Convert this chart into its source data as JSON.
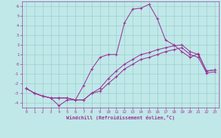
{
  "xlabel": "Windchill (Refroidissement éolien,°C)",
  "xlim": [
    -0.5,
    23.5
  ],
  "ylim": [
    -4.5,
    6.5
  ],
  "yticks": [
    -4,
    -3,
    -2,
    -1,
    0,
    1,
    2,
    3,
    4,
    5,
    6
  ],
  "xticks": [
    0,
    1,
    2,
    3,
    4,
    5,
    6,
    7,
    8,
    9,
    10,
    11,
    12,
    13,
    14,
    15,
    16,
    17,
    18,
    19,
    20,
    21,
    22,
    23
  ],
  "bg_color": "#c0e8e8",
  "line_color": "#993399",
  "grid_color": "#99cccc",
  "line1_x": [
    0,
    1,
    2,
    3,
    4,
    5,
    6,
    7,
    8,
    9,
    10,
    11,
    12,
    13,
    14,
    15,
    16,
    17,
    18,
    19,
    20,
    21,
    22,
    23
  ],
  "line1_y": [
    -2.5,
    -3.0,
    -3.3,
    -3.5,
    -4.3,
    -3.7,
    -3.7,
    -2.2,
    -0.5,
    0.7,
    1.0,
    1.0,
    4.3,
    5.7,
    5.8,
    6.2,
    4.7,
    2.5,
    2.0,
    1.3,
    0.7,
    1.1,
    -0.7,
    -0.6
  ],
  "line2_x": [
    0,
    1,
    2,
    3,
    4,
    5,
    6,
    7,
    8,
    9,
    10,
    11,
    12,
    13,
    14,
    15,
    16,
    17,
    18,
    19,
    20,
    21,
    22,
    23
  ],
  "line2_y": [
    -2.5,
    -3.0,
    -3.3,
    -3.5,
    -3.5,
    -3.5,
    -3.7,
    -3.7,
    -3.0,
    -2.5,
    -1.5,
    -0.7,
    0.0,
    0.5,
    1.0,
    1.2,
    1.5,
    1.7,
    1.9,
    2.0,
    1.3,
    1.0,
    -0.7,
    -0.6
  ],
  "line3_x": [
    0,
    1,
    2,
    3,
    4,
    5,
    6,
    7,
    8,
    9,
    10,
    11,
    12,
    13,
    14,
    15,
    16,
    17,
    18,
    19,
    20,
    21,
    22,
    23
  ],
  "line3_y": [
    -2.5,
    -3.0,
    -3.3,
    -3.5,
    -3.5,
    -3.5,
    -3.7,
    -3.7,
    -3.0,
    -2.8,
    -2.0,
    -1.3,
    -0.5,
    0.0,
    0.5,
    0.7,
    1.0,
    1.3,
    1.5,
    1.7,
    1.0,
    0.7,
    -0.9,
    -0.8
  ]
}
